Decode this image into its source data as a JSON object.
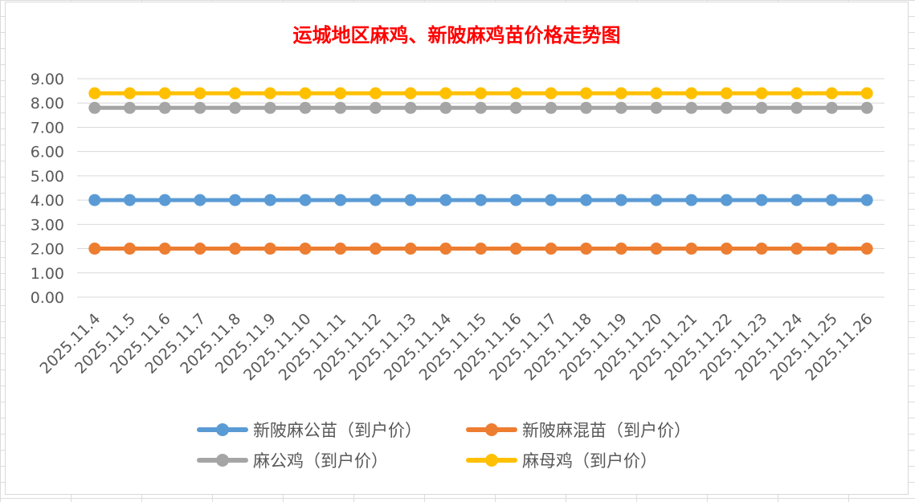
{
  "chart_data": {
    "type": "line",
    "title": "运城地区麻鸡、新陂麻鸡苗价格走势图",
    "categories": [
      "2025.11.4",
      "2025.11.5",
      "2025.11.6",
      "2025.11.7",
      "2025.11.8",
      "2025.11.9",
      "2025.11.10",
      "2025.11.11",
      "2025.11.12",
      "2025.11.13",
      "2025.11.14",
      "2025.11.15",
      "2025.11.16",
      "2025.11.17",
      "2025.11.18",
      "2025.11.19",
      "2025.11.20",
      "2025.11.21",
      "2025.11.22",
      "2025.11.23",
      "2025.11.24",
      "2025.11.25",
      "2025.11.26"
    ],
    "yticks": [
      "0.00",
      "1.00",
      "2.00",
      "3.00",
      "4.00",
      "5.00",
      "6.00",
      "7.00",
      "8.00",
      "9.00"
    ],
    "ylim": [
      0,
      9
    ],
    "grid": true,
    "legend_position": "bottom",
    "series": [
      {
        "name": "新陂麻公苗（到户价）",
        "color": "#5b9bd5",
        "values": [
          4,
          4,
          4,
          4,
          4,
          4,
          4,
          4,
          4,
          4,
          4,
          4,
          4,
          4,
          4,
          4,
          4,
          4,
          4,
          4,
          4,
          4,
          4
        ]
      },
      {
        "name": "新陂麻混苗（到户价）",
        "color": "#ed7d31",
        "values": [
          2,
          2,
          2,
          2,
          2,
          2,
          2,
          2,
          2,
          2,
          2,
          2,
          2,
          2,
          2,
          2,
          2,
          2,
          2,
          2,
          2,
          2,
          2
        ]
      },
      {
        "name": "麻公鸡（到户价）",
        "color": "#a5a5a5",
        "values": [
          7.8,
          7.8,
          7.8,
          7.8,
          7.8,
          7.8,
          7.8,
          7.8,
          7.8,
          7.8,
          7.8,
          7.8,
          7.8,
          7.8,
          7.8,
          7.8,
          7.8,
          7.8,
          7.8,
          7.8,
          7.8,
          7.8,
          7.8
        ]
      },
      {
        "name": "麻母鸡（到户价）",
        "color": "#ffc000",
        "values": [
          8.4,
          8.4,
          8.4,
          8.4,
          8.4,
          8.4,
          8.4,
          8.4,
          8.4,
          8.4,
          8.4,
          8.4,
          8.4,
          8.4,
          8.4,
          8.4,
          8.4,
          8.4,
          8.4,
          8.4,
          8.4,
          8.4,
          8.4
        ]
      }
    ]
  }
}
